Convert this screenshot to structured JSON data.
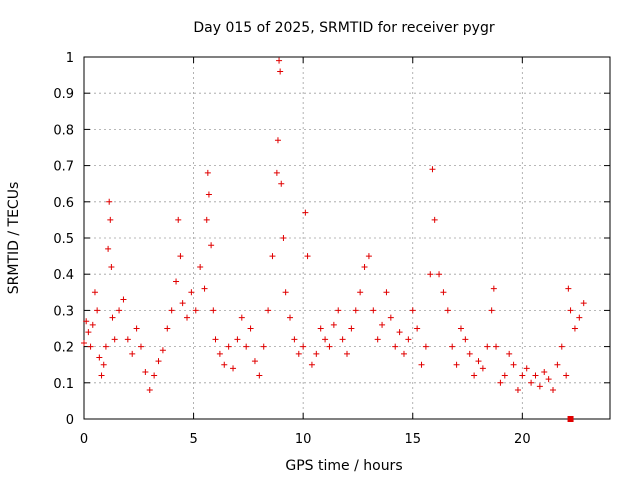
{
  "chart_data": {
    "type": "scatter",
    "title": "Day 015 of 2025, SRMTID for receiver pygr",
    "xlabel": "GPS time / hours",
    "ylabel": "SRMTID / TECUs",
    "xlim": [
      0,
      24
    ],
    "ylim": [
      0,
      1
    ],
    "grid": true,
    "x_ticks": [
      0,
      5,
      10,
      15,
      20
    ],
    "y_ticks": [
      0,
      0.1,
      0.2,
      0.3,
      0.4,
      0.5,
      0.6,
      0.7,
      0.8,
      0.9,
      1
    ],
    "x_tick_labels": [
      "0",
      "5",
      "10",
      "15",
      "20"
    ],
    "y_tick_labels": [
      "0",
      "0.1",
      "0.2",
      "0.3",
      "0.4",
      "0.5",
      "0.6",
      "0.7",
      "0.8",
      "0.9",
      "1"
    ],
    "marker": "+",
    "colors": {
      "points": "#e00000",
      "grid": "#a0a0a0",
      "axis": "#000000"
    },
    "series": [
      {
        "name": "SRMTID",
        "points": [
          [
            0.0,
            0.21
          ],
          [
            0.1,
            0.27
          ],
          [
            0.2,
            0.24
          ],
          [
            0.3,
            0.2
          ],
          [
            0.4,
            0.26
          ],
          [
            0.5,
            0.35
          ],
          [
            0.6,
            0.3
          ],
          [
            0.7,
            0.17
          ],
          [
            0.8,
            0.12
          ],
          [
            0.9,
            0.15
          ],
          [
            1.0,
            0.2
          ],
          [
            1.1,
            0.47
          ],
          [
            1.15,
            0.6
          ],
          [
            1.2,
            0.55
          ],
          [
            1.25,
            0.42
          ],
          [
            1.3,
            0.28
          ],
          [
            1.4,
            0.22
          ],
          [
            1.6,
            0.3
          ],
          [
            1.8,
            0.33
          ],
          [
            2.0,
            0.22
          ],
          [
            2.2,
            0.18
          ],
          [
            2.4,
            0.25
          ],
          [
            2.6,
            0.2
          ],
          [
            2.8,
            0.13
          ],
          [
            3.0,
            0.08
          ],
          [
            3.2,
            0.12
          ],
          [
            3.4,
            0.16
          ],
          [
            3.6,
            0.19
          ],
          [
            3.8,
            0.25
          ],
          [
            4.0,
            0.3
          ],
          [
            4.2,
            0.38
          ],
          [
            4.3,
            0.55
          ],
          [
            4.4,
            0.45
          ],
          [
            4.5,
            0.32
          ],
          [
            4.7,
            0.28
          ],
          [
            4.9,
            0.35
          ],
          [
            5.1,
            0.3
          ],
          [
            5.3,
            0.42
          ],
          [
            5.5,
            0.36
          ],
          [
            5.6,
            0.55
          ],
          [
            5.65,
            0.68
          ],
          [
            5.7,
            0.62
          ],
          [
            5.8,
            0.48
          ],
          [
            5.9,
            0.3
          ],
          [
            6.0,
            0.22
          ],
          [
            6.2,
            0.18
          ],
          [
            6.4,
            0.15
          ],
          [
            6.6,
            0.2
          ],
          [
            6.8,
            0.14
          ],
          [
            7.0,
            0.22
          ],
          [
            7.2,
            0.28
          ],
          [
            7.4,
            0.2
          ],
          [
            7.6,
            0.25
          ],
          [
            7.8,
            0.16
          ],
          [
            8.0,
            0.12
          ],
          [
            8.2,
            0.2
          ],
          [
            8.4,
            0.3
          ],
          [
            8.6,
            0.45
          ],
          [
            8.8,
            0.68
          ],
          [
            8.85,
            0.77
          ],
          [
            8.9,
            0.99
          ],
          [
            8.95,
            0.96
          ],
          [
            9.0,
            0.65
          ],
          [
            9.1,
            0.5
          ],
          [
            9.2,
            0.35
          ],
          [
            9.4,
            0.28
          ],
          [
            9.6,
            0.22
          ],
          [
            9.8,
            0.18
          ],
          [
            10.0,
            0.2
          ],
          [
            10.1,
            0.57
          ],
          [
            10.2,
            0.45
          ],
          [
            10.4,
            0.15
          ],
          [
            10.6,
            0.18
          ],
          [
            10.8,
            0.25
          ],
          [
            11.0,
            0.22
          ],
          [
            11.2,
            0.2
          ],
          [
            11.4,
            0.26
          ],
          [
            11.6,
            0.3
          ],
          [
            11.8,
            0.22
          ],
          [
            12.0,
            0.18
          ],
          [
            12.2,
            0.25
          ],
          [
            12.4,
            0.3
          ],
          [
            12.6,
            0.35
          ],
          [
            12.8,
            0.42
          ],
          [
            13.0,
            0.45
          ],
          [
            13.2,
            0.3
          ],
          [
            13.4,
            0.22
          ],
          [
            13.6,
            0.26
          ],
          [
            13.8,
            0.35
          ],
          [
            14.0,
            0.28
          ],
          [
            14.2,
            0.2
          ],
          [
            14.4,
            0.24
          ],
          [
            14.6,
            0.18
          ],
          [
            14.8,
            0.22
          ],
          [
            15.0,
            0.3
          ],
          [
            15.2,
            0.25
          ],
          [
            15.4,
            0.15
          ],
          [
            15.6,
            0.2
          ],
          [
            15.8,
            0.4
          ],
          [
            15.9,
            0.69
          ],
          [
            16.0,
            0.55
          ],
          [
            16.2,
            0.4
          ],
          [
            16.4,
            0.35
          ],
          [
            16.6,
            0.3
          ],
          [
            16.8,
            0.2
          ],
          [
            17.0,
            0.15
          ],
          [
            17.2,
            0.25
          ],
          [
            17.4,
            0.22
          ],
          [
            17.6,
            0.18
          ],
          [
            17.8,
            0.12
          ],
          [
            18.0,
            0.16
          ],
          [
            18.2,
            0.14
          ],
          [
            18.4,
            0.2
          ],
          [
            18.6,
            0.3
          ],
          [
            18.7,
            0.36
          ],
          [
            18.8,
            0.2
          ],
          [
            19.0,
            0.1
          ],
          [
            19.2,
            0.12
          ],
          [
            19.4,
            0.18
          ],
          [
            19.6,
            0.15
          ],
          [
            19.8,
            0.08
          ],
          [
            20.0,
            0.12
          ],
          [
            20.2,
            0.14
          ],
          [
            20.4,
            0.1
          ],
          [
            20.6,
            0.12
          ],
          [
            20.8,
            0.09
          ],
          [
            21.0,
            0.13
          ],
          [
            21.2,
            0.11
          ],
          [
            21.4,
            0.08
          ],
          [
            21.6,
            0.15
          ],
          [
            21.8,
            0.2
          ],
          [
            22.0,
            0.12
          ],
          [
            22.1,
            0.36
          ],
          [
            22.2,
            0.3
          ],
          [
            22.4,
            0.25
          ],
          [
            22.6,
            0.28
          ],
          [
            22.8,
            0.32
          ]
        ]
      }
    ],
    "extra_markers": [
      {
        "shape": "square",
        "points": [
          [
            22.2,
            0.0
          ]
        ]
      }
    ]
  }
}
